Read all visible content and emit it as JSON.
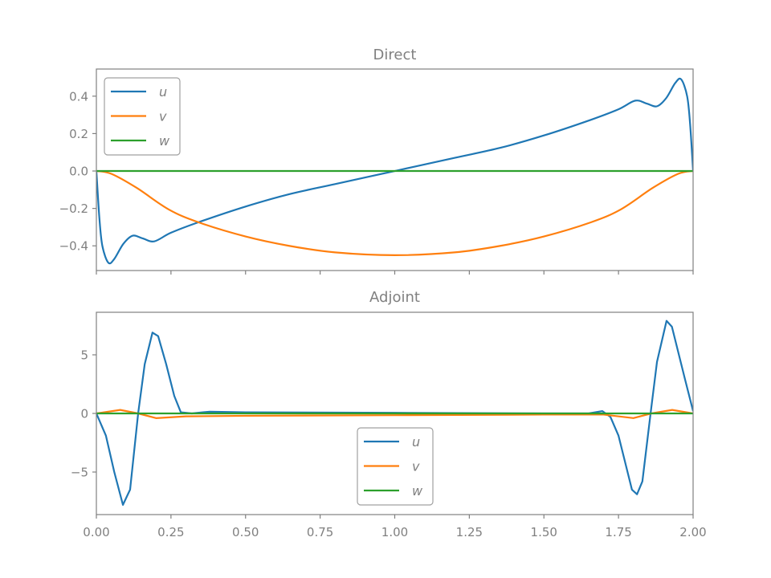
{
  "chart_data": [
    {
      "type": "line",
      "title": "Direct",
      "xlim": [
        0,
        2
      ],
      "ylim": [
        -0.532,
        0.545
      ],
      "xticks": [
        0,
        0.25,
        0.5,
        0.75,
        1.0,
        1.25,
        1.5,
        1.75,
        2.0
      ],
      "xtick_labels_shown": false,
      "yticks": [
        -0.4,
        -0.2,
        0.0,
        0.2,
        0.4
      ],
      "ytick_labels": [
        "−0.4",
        "−0.2",
        "0.0",
        "0.2",
        "0.4"
      ],
      "grid": false,
      "legend_placement": "top-left",
      "series": [
        {
          "name": "u",
          "color": "#1f77b4",
          "points": [
            [
              0,
              0
            ],
            [
              0.01,
              -0.25
            ],
            [
              0.02,
              -0.4
            ],
            [
              0.04,
              -0.49
            ],
            [
              0.06,
              -0.47
            ],
            [
              0.09,
              -0.39
            ],
            [
              0.121,
              -0.346
            ],
            [
              0.155,
              -0.36
            ],
            [
              0.194,
              -0.376
            ],
            [
              0.25,
              -0.33
            ],
            [
              0.342,
              -0.274
            ],
            [
              0.5,
              -0.19
            ],
            [
              0.646,
              -0.124
            ],
            [
              0.8,
              -0.07
            ],
            [
              1,
              0
            ],
            [
              1.2,
              0.07
            ],
            [
              1.354,
              0.124
            ],
            [
              1.5,
              0.19
            ],
            [
              1.658,
              0.274
            ],
            [
              1.75,
              0.33
            ],
            [
              1.806,
              0.376
            ],
            [
              1.845,
              0.36
            ],
            [
              1.879,
              0.346
            ],
            [
              1.91,
              0.39
            ],
            [
              1.94,
              0.47
            ],
            [
              1.96,
              0.49
            ],
            [
              1.98,
              0.4
            ],
            [
              1.99,
              0.25
            ],
            [
              2,
              0
            ]
          ]
        },
        {
          "name": "v",
          "color": "#ff7f0e",
          "points": [
            [
              0,
              0
            ],
            [
              0.05,
              -0.015
            ],
            [
              0.135,
              -0.09
            ],
            [
              0.242,
              -0.205
            ],
            [
              0.342,
              -0.274
            ],
            [
              0.5,
              -0.35
            ],
            [
              0.646,
              -0.4
            ],
            [
              0.8,
              -0.435
            ],
            [
              1,
              -0.45
            ],
            [
              1.2,
              -0.435
            ],
            [
              1.354,
              -0.4
            ],
            [
              1.5,
              -0.35
            ],
            [
              1.658,
              -0.274
            ],
            [
              1.758,
              -0.205
            ],
            [
              1.865,
              -0.09
            ],
            [
              1.95,
              -0.015
            ],
            [
              2,
              0
            ]
          ]
        },
        {
          "name": "w",
          "color": "#2ca02c",
          "points": [
            [
              0,
              0
            ],
            [
              2,
              0
            ]
          ]
        }
      ]
    },
    {
      "type": "line",
      "title": "Adjoint",
      "xlim": [
        0,
        2
      ],
      "ylim": [
        -8.63,
        8.63
      ],
      "xticks": [
        0,
        0.25,
        0.5,
        0.75,
        1.0,
        1.25,
        1.5,
        1.75,
        2.0
      ],
      "xtick_labels": [
        "0.00",
        "0.25",
        "0.50",
        "0.75",
        "1.00",
        "1.25",
        "1.50",
        "1.75",
        "2.00"
      ],
      "yticks": [
        -5,
        0,
        5
      ],
      "ytick_labels": [
        "−5",
        "0",
        "5"
      ],
      "grid": false,
      "legend_placement": "lower-center",
      "series": [
        {
          "name": "u",
          "color": "#1f77b4",
          "points": [
            [
              0,
              0
            ],
            [
              0.032,
              -1.9
            ],
            [
              0.06,
              -5
            ],
            [
              0.089,
              -7.8
            ],
            [
              0.113,
              -6.5
            ],
            [
              0.14,
              0
            ],
            [
              0.162,
              4.2
            ],
            [
              0.188,
              6.9
            ],
            [
              0.207,
              6.6
            ],
            [
              0.234,
              4.2
            ],
            [
              0.261,
              1.5
            ],
            [
              0.283,
              0.1
            ],
            [
              0.32,
              0
            ],
            [
              0.38,
              0.15
            ],
            [
              0.5,
              0.1
            ],
            [
              1,
              0.05
            ],
            [
              1.5,
              0
            ],
            [
              1.65,
              0
            ],
            [
              1.696,
              0.2
            ],
            [
              1.723,
              -0.3
            ],
            [
              1.75,
              -1.9
            ],
            [
              1.795,
              -6.5
            ],
            [
              1.812,
              -6.9
            ],
            [
              1.83,
              -5.8
            ],
            [
              1.857,
              -0.1
            ],
            [
              1.879,
              4.4
            ],
            [
              1.911,
              7.9
            ],
            [
              1.929,
              7.4
            ],
            [
              1.973,
              2.9
            ],
            [
              2,
              0.2
            ]
          ]
        },
        {
          "name": "v",
          "color": "#ff7f0e",
          "points": [
            [
              0,
              0
            ],
            [
              0.08,
              0.3
            ],
            [
              0.14,
              0
            ],
            [
              0.2,
              -0.4
            ],
            [
              0.3,
              -0.25
            ],
            [
              0.5,
              -0.2
            ],
            [
              1,
              -0.15
            ],
            [
              1.5,
              -0.1
            ],
            [
              1.7,
              -0.1
            ],
            [
              1.8,
              -0.4
            ],
            [
              1.86,
              0
            ],
            [
              1.93,
              0.3
            ],
            [
              2,
              0
            ]
          ]
        },
        {
          "name": "w",
          "color": "#2ca02c",
          "points": [
            [
              0,
              0
            ],
            [
              2,
              0
            ]
          ]
        }
      ]
    }
  ]
}
